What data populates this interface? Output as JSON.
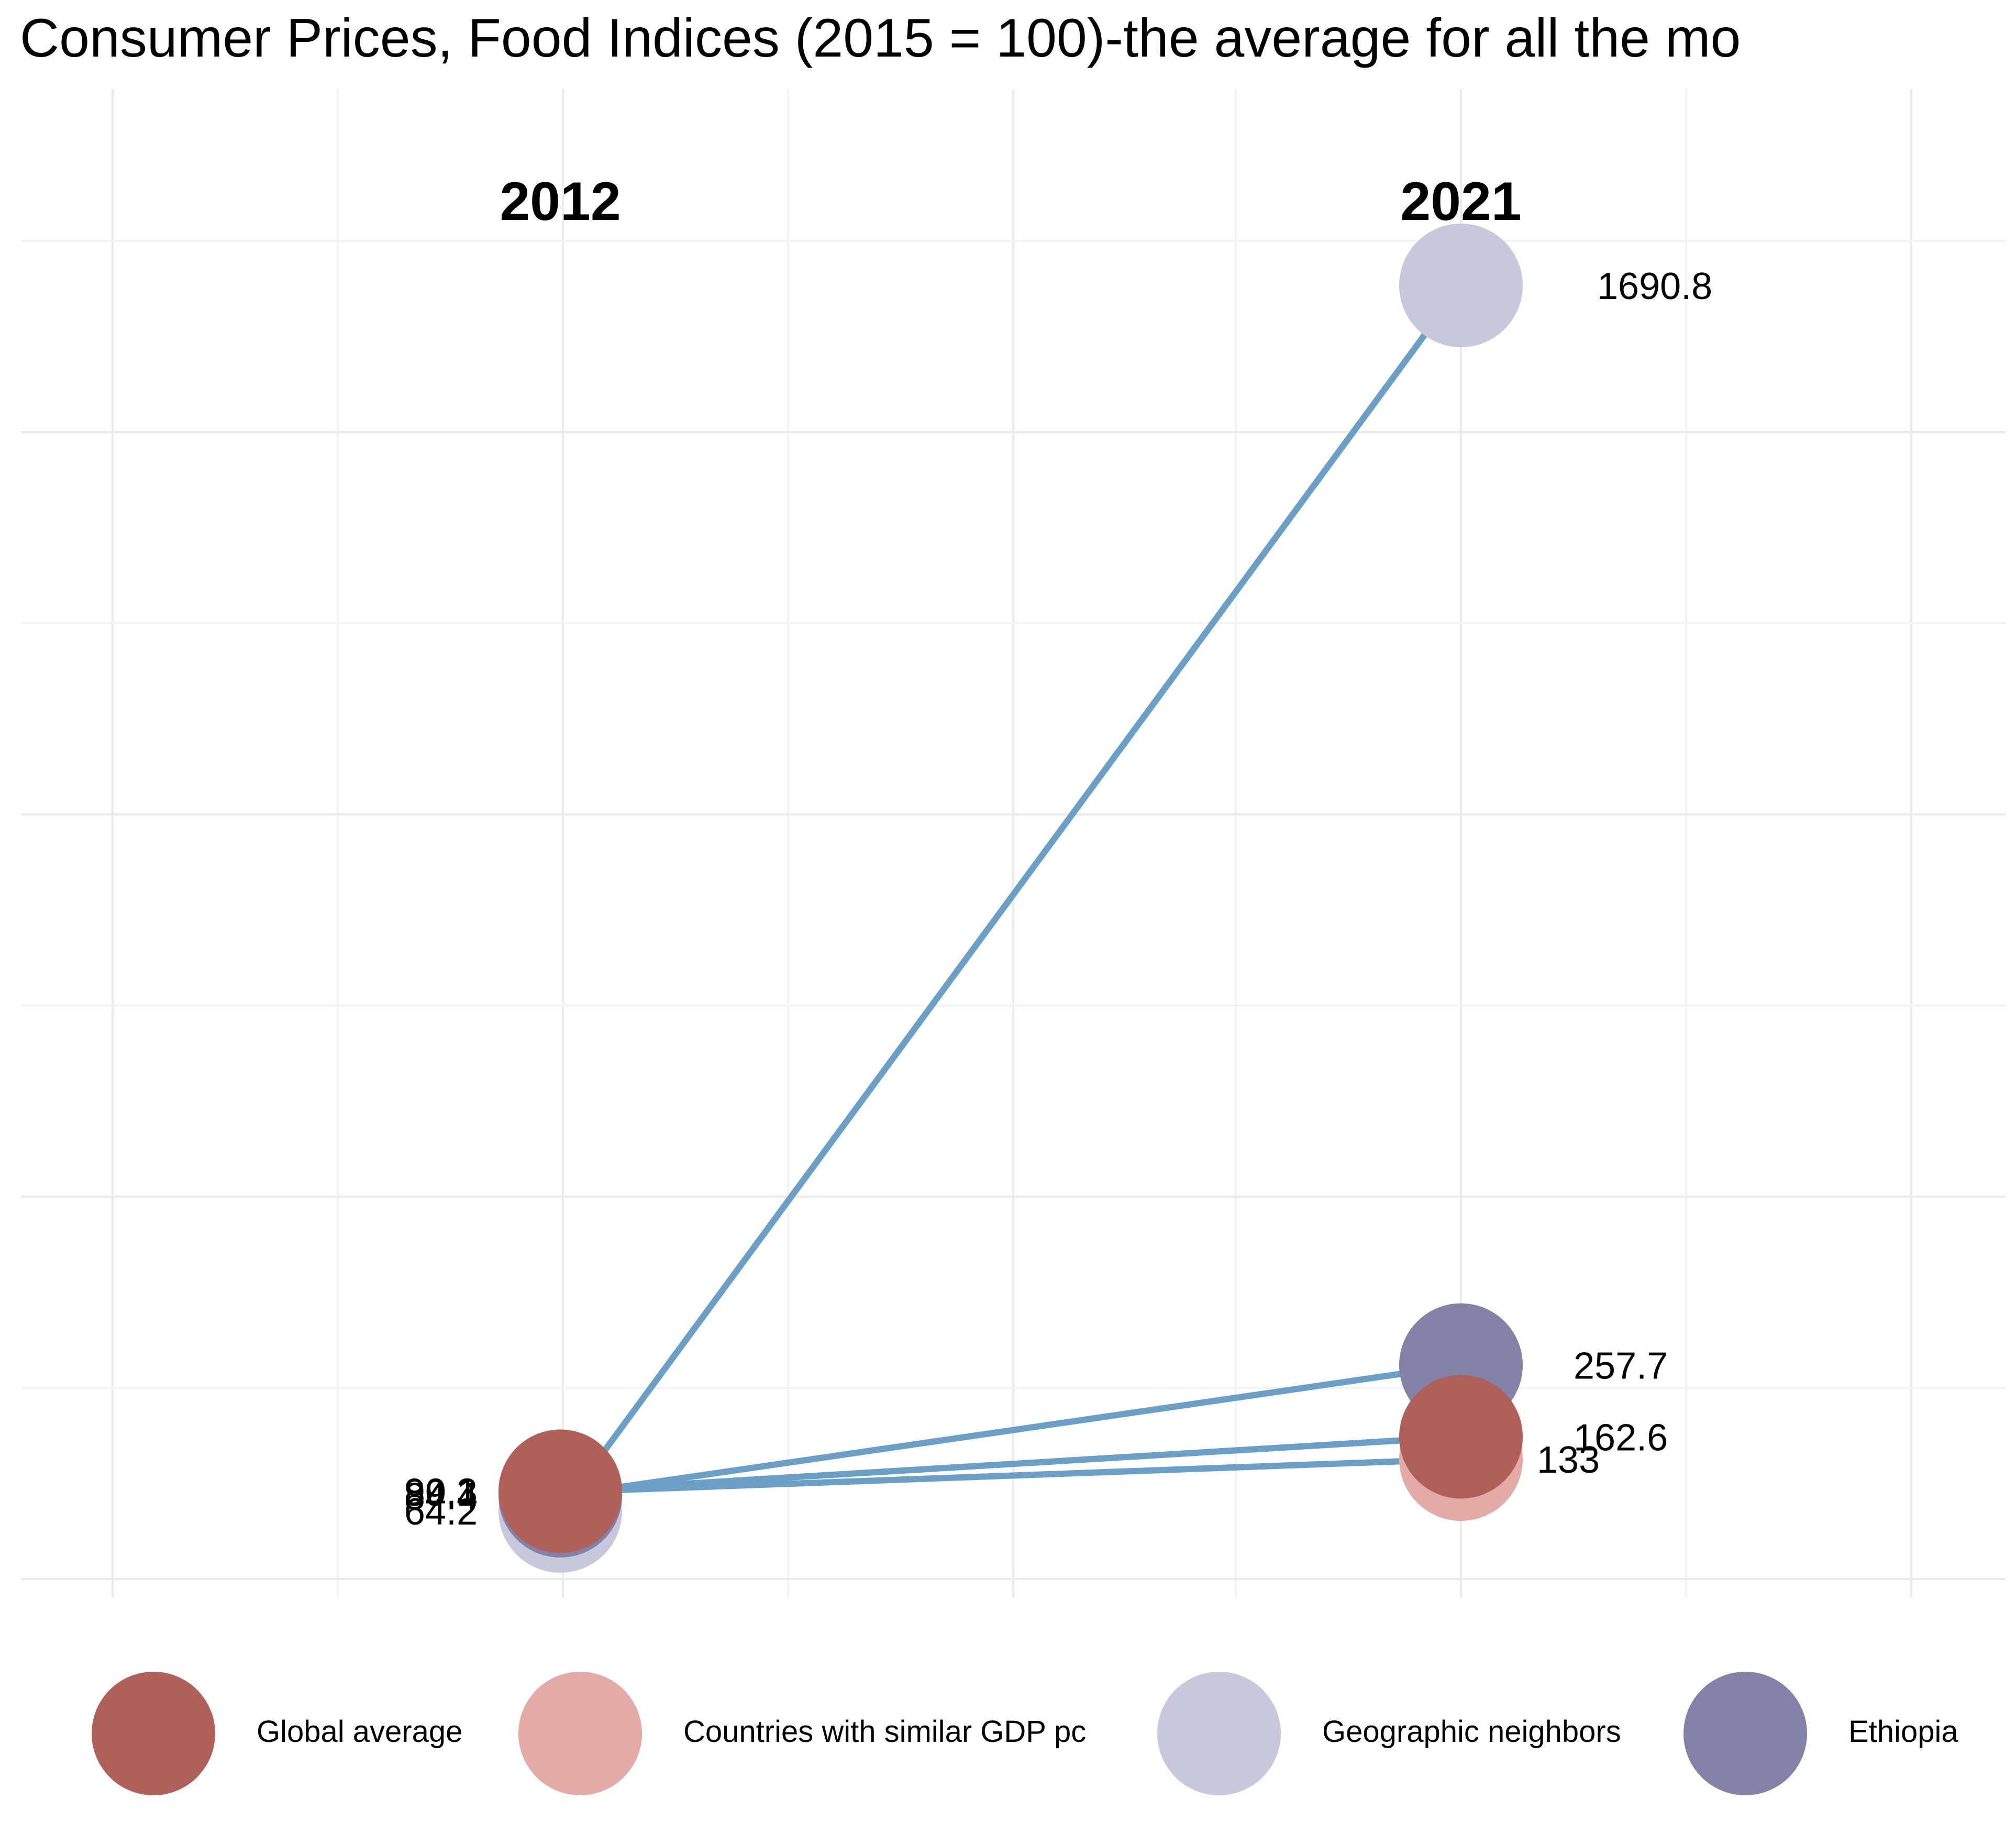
{
  "title": "Consumer Prices, Food Indices (2015 = 100)-the average for all the mo",
  "chart_data": {
    "type": "slope",
    "x": [
      "2012",
      "2021"
    ],
    "series": [
      {
        "name": "Global average",
        "values": [
          90.3,
          162.6
        ],
        "color": "#b0605b"
      },
      {
        "name": "Countries with similar GDP pc",
        "values": [
          89.1,
          133
        ],
        "color": "#e3aaa7"
      },
      {
        "name": "Geographic neighbors",
        "values": [
          64.2,
          1690.8
        ],
        "color": "#c8c8dc"
      },
      {
        "name": "Ethiopia",
        "values": [
          84.4,
          257.7
        ],
        "color": "#8381a8"
      }
    ],
    "value_labels_2012": [
      "90.3",
      "89.1",
      "84.4",
      "64.2"
    ],
    "value_labels_2021": [
      "1690.8",
      "257.7",
      "162.6",
      "133"
    ],
    "line_color": "#6b9fc6",
    "grid": true,
    "legend_position": "bottom"
  },
  "legend": {
    "items": [
      {
        "label": "Global average",
        "color": "#b0605b"
      },
      {
        "label": "Countries with similar GDP pc",
        "color": "#e3aaa7"
      },
      {
        "label": "Geographic neighbors",
        "color": "#c8c8dc"
      },
      {
        "label": "Ethiopia",
        "color": "#8381a8"
      }
    ]
  }
}
